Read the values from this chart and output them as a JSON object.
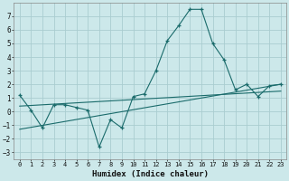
{
  "xlabel": "Humidex (Indice chaleur)",
  "background_color": "#cce8ea",
  "grid_color": "#aacdd0",
  "line_color": "#1a6b6b",
  "xlim": [
    -0.5,
    23.5
  ],
  "ylim": [
    -3.5,
    8.0
  ],
  "xticks": [
    0,
    1,
    2,
    3,
    4,
    5,
    6,
    7,
    8,
    9,
    10,
    11,
    12,
    13,
    14,
    15,
    16,
    17,
    18,
    19,
    20,
    21,
    22,
    23
  ],
  "yticks": [
    -3,
    -2,
    -1,
    0,
    1,
    2,
    3,
    4,
    5,
    6,
    7
  ],
  "main_x": [
    0,
    1,
    2,
    3,
    4,
    5,
    6,
    7,
    8,
    9,
    10,
    11,
    12,
    13,
    14,
    15,
    16,
    17,
    18,
    19,
    20,
    21,
    22,
    23
  ],
  "main_y": [
    1.2,
    0.1,
    -1.2,
    0.5,
    0.5,
    0.3,
    0.1,
    -2.6,
    -0.6,
    -1.2,
    1.1,
    1.3,
    3.0,
    5.2,
    6.3,
    7.5,
    7.5,
    5.0,
    3.8,
    1.6,
    2.0,
    1.1,
    1.9,
    2.0
  ],
  "trend1_x": [
    0,
    23
  ],
  "trend1_y": [
    0.4,
    1.5
  ],
  "trend2_x": [
    0,
    23
  ],
  "trend2_y": [
    -1.3,
    2.0
  ]
}
